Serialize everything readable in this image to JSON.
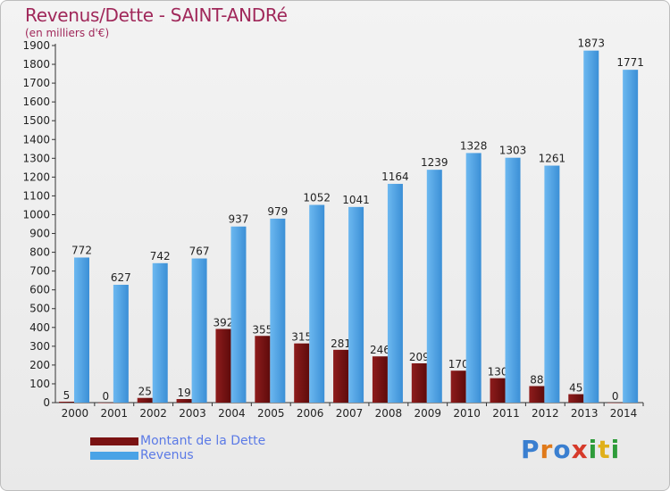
{
  "chart_data": {
    "type": "bar",
    "title": "Revenus/Dette - SAINT-ANDRé",
    "subtitle": "(en milliers d'€)",
    "categories": [
      "2000",
      "2001",
      "2002",
      "2003",
      "2004",
      "2005",
      "2006",
      "2007",
      "2008",
      "2009",
      "2010",
      "2011",
      "2012",
      "2013",
      "2014"
    ],
    "series": [
      {
        "name": "Montant de la Dette",
        "color": "#7a1212",
        "values": [
          5,
          0,
          25,
          19,
          392,
          355,
          315,
          281,
          246,
          209,
          170,
          130,
          88,
          45,
          0
        ]
      },
      {
        "name": "Revenus",
        "color": "#4aa3e6",
        "values": [
          772,
          627,
          742,
          767,
          937,
          979,
          1052,
          1041,
          1164,
          1239,
          1328,
          1303,
          1261,
          1873,
          1771
        ]
      }
    ],
    "yticks": [
      0,
      100,
      200,
      300,
      400,
      500,
      600,
      700,
      800,
      900,
      1000,
      1100,
      1200,
      1300,
      1400,
      1500,
      1600,
      1700,
      1800,
      1900
    ],
    "ylim": [
      0,
      1900
    ],
    "grid": false,
    "legend_position": "bottom-left"
  },
  "branding": {
    "logo_letters": [
      "P",
      "r",
      "o",
      "x",
      "i",
      "t",
      "i"
    ],
    "logo_colors": [
      "#3a7fd0",
      "#e07a1a",
      "#3a7fd0",
      "#d63a2a",
      "#2e9c3a",
      "#e0b01a",
      "#2e9c3a"
    ]
  }
}
